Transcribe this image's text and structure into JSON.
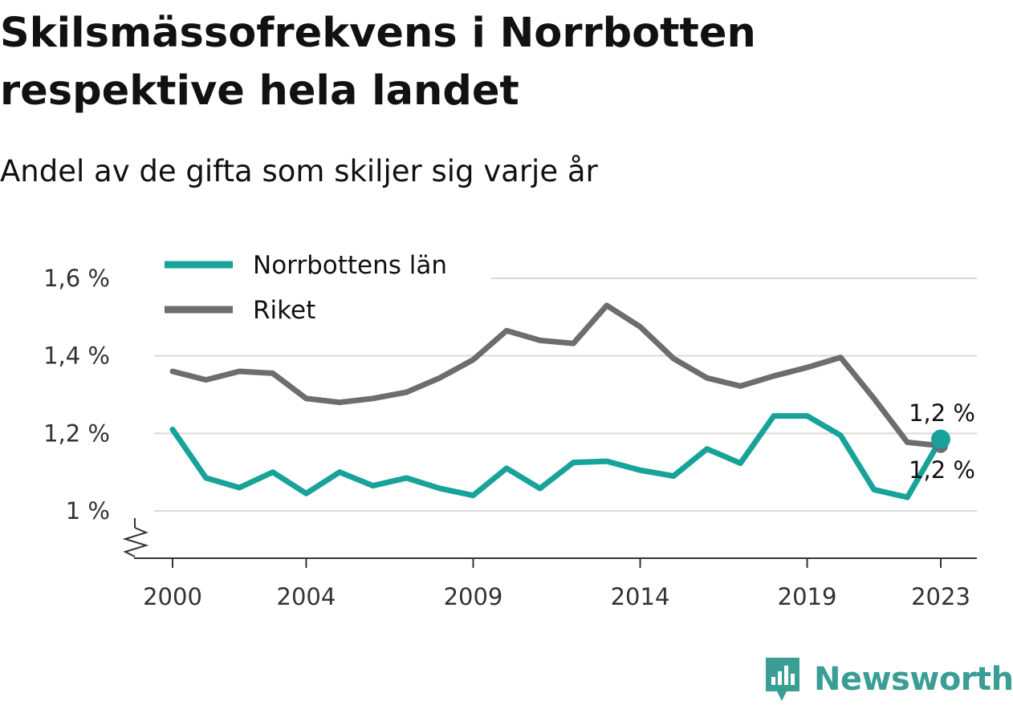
{
  "title": "Skilsmässofrekvens i Norrbotten respektive hela landet",
  "subtitle": "Andel av de gifta som skiljer sig varje år",
  "brand": {
    "name": "Newsworthy",
    "icon": "newsworthy-logo-icon",
    "color": "#3a9e94"
  },
  "chart_data": {
    "type": "line",
    "x": [
      2000,
      2001,
      2002,
      2003,
      2004,
      2005,
      2006,
      2007,
      2008,
      2009,
      2010,
      2011,
      2012,
      2013,
      2014,
      2015,
      2016,
      2017,
      2018,
      2019,
      2020,
      2021,
      2022,
      2023
    ],
    "x_ticks": [
      2000,
      2004,
      2009,
      2014,
      2019,
      2023
    ],
    "x_tick_labels": [
      "2000",
      "2004",
      "2009",
      "2014",
      "2019",
      "2023"
    ],
    "y_ticks": [
      1.0,
      1.2,
      1.4,
      1.6
    ],
    "y_tick_labels": [
      "1 %",
      "1,2 %",
      "1,4 %",
      "1,6 %"
    ],
    "ylim": [
      0.88,
      1.6
    ],
    "y_axis_break": true,
    "grid": "horizontal",
    "legend_position": "top-left",
    "series": [
      {
        "name": "Norrbottens län",
        "color": "#17a29a",
        "values": [
          1.21,
          1.085,
          1.06,
          1.1,
          1.045,
          1.1,
          1.065,
          1.085,
          1.058,
          1.04,
          1.11,
          1.058,
          1.125,
          1.128,
          1.105,
          1.09,
          1.16,
          1.123,
          1.245,
          1.245,
          1.195,
          1.055,
          1.035,
          1.185
        ],
        "end_label": "1,2 %"
      },
      {
        "name": "Riket",
        "color": "#6d6c71",
        "values": [
          1.36,
          1.338,
          1.36,
          1.355,
          1.29,
          1.28,
          1.29,
          1.306,
          1.343,
          1.39,
          1.465,
          1.44,
          1.432,
          1.53,
          1.475,
          1.393,
          1.343,
          1.322,
          1.348,
          1.37,
          1.396,
          1.29,
          1.177,
          1.168
        ],
        "end_label": "1,2 %"
      }
    ]
  }
}
